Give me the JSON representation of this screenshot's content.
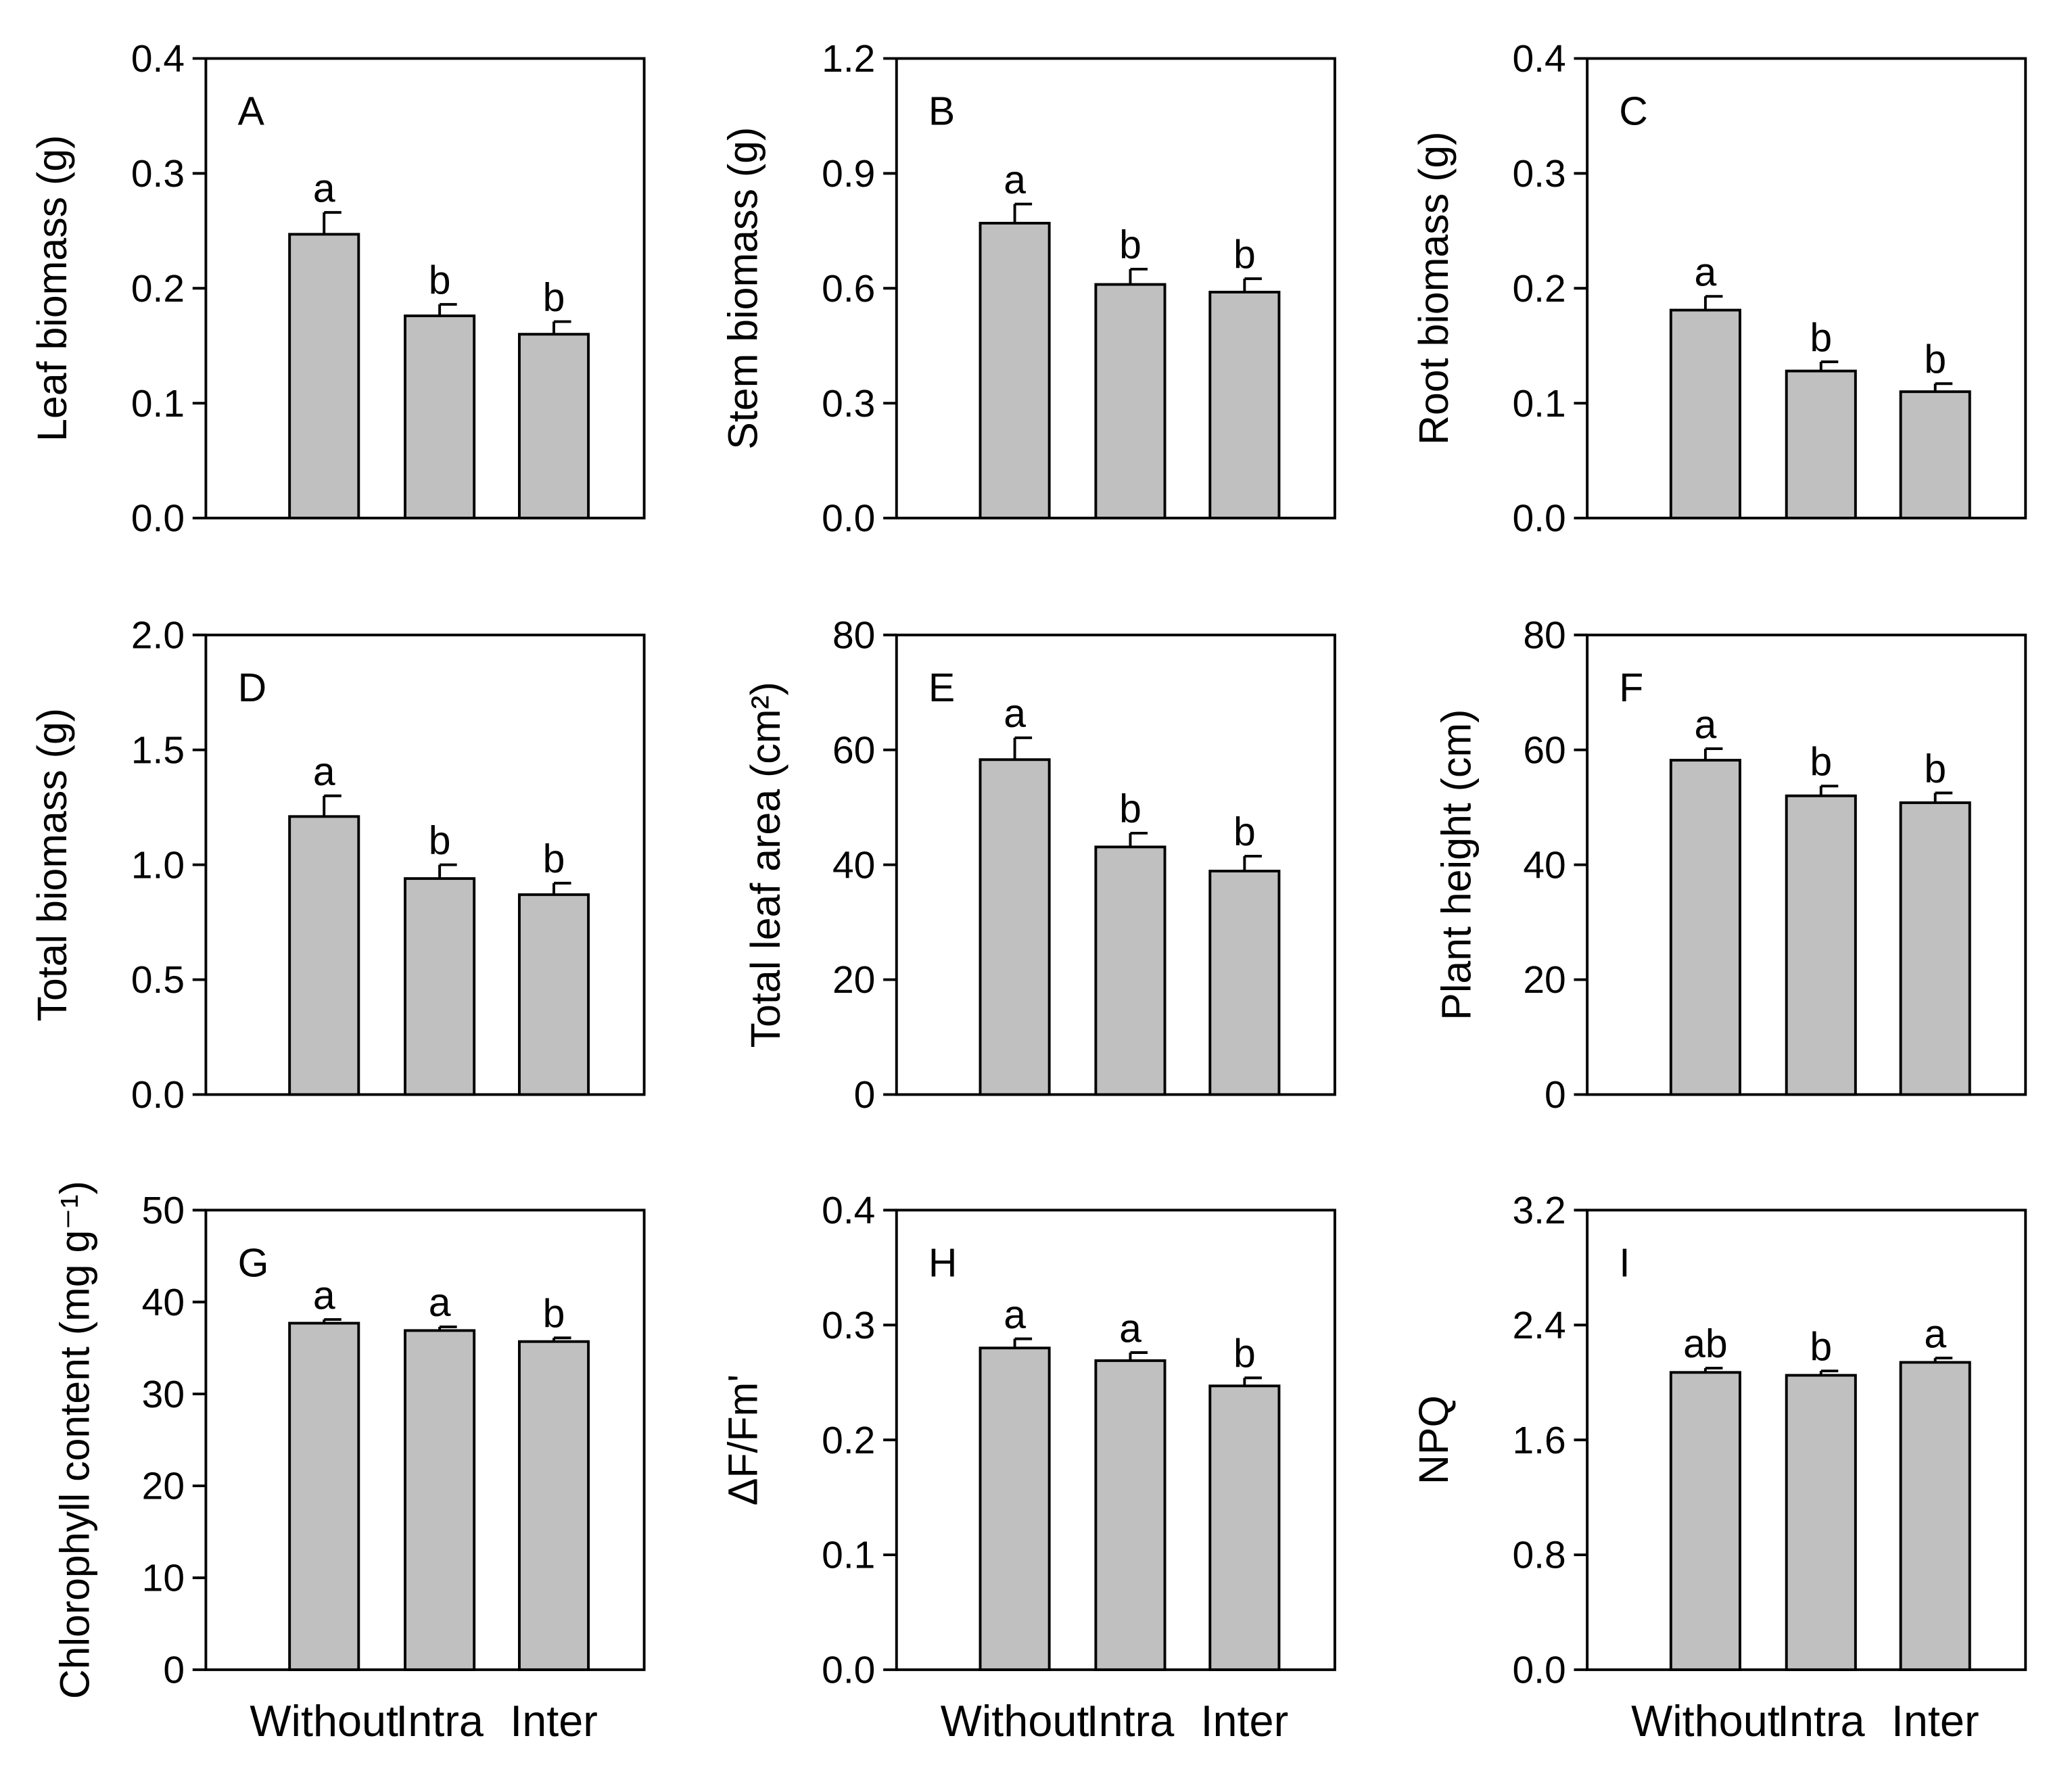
{
  "chart_data": [
    {
      "type": "bar",
      "panel": "A",
      "ylabel": "Leaf biomass (g)",
      "ylim": [
        0,
        0.4
      ],
      "yticks": [
        "0.0",
        "0.1",
        "0.2",
        "0.3",
        "0.4"
      ],
      "categories": [
        "Without",
        "Intra",
        "Inter"
      ],
      "values": [
        0.247,
        0.176,
        0.16
      ],
      "errors": [
        0.019,
        0.01,
        0.011
      ],
      "letters": [
        "a",
        "b",
        "b"
      ],
      "grid": false
    },
    {
      "type": "bar",
      "panel": "B",
      "ylabel": "Stem biomass (g)",
      "ylim": [
        0,
        1.2
      ],
      "yticks": [
        "0.0",
        "0.3",
        "0.6",
        "0.9",
        "1.2"
      ],
      "categories": [
        "Without",
        "Intra",
        "Inter"
      ],
      "values": [
        0.77,
        0.61,
        0.59
      ],
      "errors": [
        0.05,
        0.04,
        0.035
      ],
      "letters": [
        "a",
        "b",
        "b"
      ],
      "grid": false
    },
    {
      "type": "bar",
      "panel": "C",
      "ylabel": "Root biomass (g)",
      "ylim": [
        0,
        0.4
      ],
      "yticks": [
        "0.0",
        "0.1",
        "0.2",
        "0.3",
        "0.4"
      ],
      "categories": [
        "Without",
        "Intra",
        "Inter"
      ],
      "values": [
        0.181,
        0.128,
        0.11
      ],
      "errors": [
        0.012,
        0.008,
        0.007
      ],
      "letters": [
        "a",
        "b",
        "b"
      ],
      "grid": false
    },
    {
      "type": "bar",
      "panel": "D",
      "ylabel": "Total biomass (g)",
      "ylim": [
        0,
        2.0
      ],
      "yticks": [
        "0.0",
        "0.5",
        "1.0",
        "1.5",
        "2.0"
      ],
      "categories": [
        "Without",
        "Intra",
        "Inter"
      ],
      "values": [
        1.21,
        0.94,
        0.87
      ],
      "errors": [
        0.09,
        0.06,
        0.05
      ],
      "letters": [
        "a",
        "b",
        "b"
      ],
      "grid": false
    },
    {
      "type": "bar",
      "panel": "E",
      "ylabel": "Total leaf area (cm²)",
      "ylim": [
        0,
        80
      ],
      "yticks": [
        "0",
        "20",
        "40",
        "60",
        "80"
      ],
      "categories": [
        "Without",
        "Intra",
        "Inter"
      ],
      "values": [
        58.3,
        43.1,
        38.9
      ],
      "errors": [
        3.8,
        2.4,
        2.6
      ],
      "letters": [
        "a",
        "b",
        "b"
      ],
      "grid": false
    },
    {
      "type": "bar",
      "panel": "F",
      "ylabel": "Plant height (cm)",
      "ylim": [
        0,
        80
      ],
      "yticks": [
        "0",
        "20",
        "40",
        "60",
        "80"
      ],
      "categories": [
        "Without",
        "Intra",
        "Inter"
      ],
      "values": [
        58.2,
        52.0,
        50.8
      ],
      "errors": [
        2.0,
        1.7,
        1.7
      ],
      "letters": [
        "a",
        "b",
        "b"
      ],
      "grid": false
    },
    {
      "type": "bar",
      "panel": "G",
      "ylabel": "Chlorophyll content (mg g⁻¹)",
      "ylim": [
        0,
        50
      ],
      "yticks": [
        "0",
        "10",
        "20",
        "30",
        "40",
        "50"
      ],
      "categories": [
        "Without",
        "Intra",
        "Inter"
      ],
      "values": [
        37.7,
        36.9,
        35.7
      ],
      "errors": [
        0.4,
        0.4,
        0.4
      ],
      "letters": [
        "a",
        "a",
        "b"
      ],
      "xticks_visible": true,
      "grid": false
    },
    {
      "type": "bar",
      "panel": "H",
      "ylabel": "ΔF/Fm'",
      "ylim": [
        0,
        0.4
      ],
      "yticks": [
        "0.0",
        "0.1",
        "0.2",
        "0.3",
        "0.4"
      ],
      "categories": [
        "Without",
        "Intra",
        "Inter"
      ],
      "values": [
        0.28,
        0.269,
        0.247
      ],
      "errors": [
        0.008,
        0.007,
        0.007
      ],
      "letters": [
        "a",
        "a",
        "b"
      ],
      "xticks_visible": true,
      "grid": false
    },
    {
      "type": "bar",
      "panel": "I",
      "ylabel": "NPQ",
      "ylim": [
        0,
        3.2
      ],
      "yticks": [
        "0.0",
        "0.8",
        "1.6",
        "2.4",
        "3.2"
      ],
      "categories": [
        "Without",
        "Intra",
        "Inter"
      ],
      "values": [
        2.07,
        2.05,
        2.14
      ],
      "errors": [
        0.03,
        0.03,
        0.03
      ],
      "letters": [
        "ab",
        "b",
        "a"
      ],
      "xticks_visible": true,
      "grid": false
    }
  ],
  "colors": {
    "bar": "#c0c0c0",
    "stroke": "#000000"
  }
}
